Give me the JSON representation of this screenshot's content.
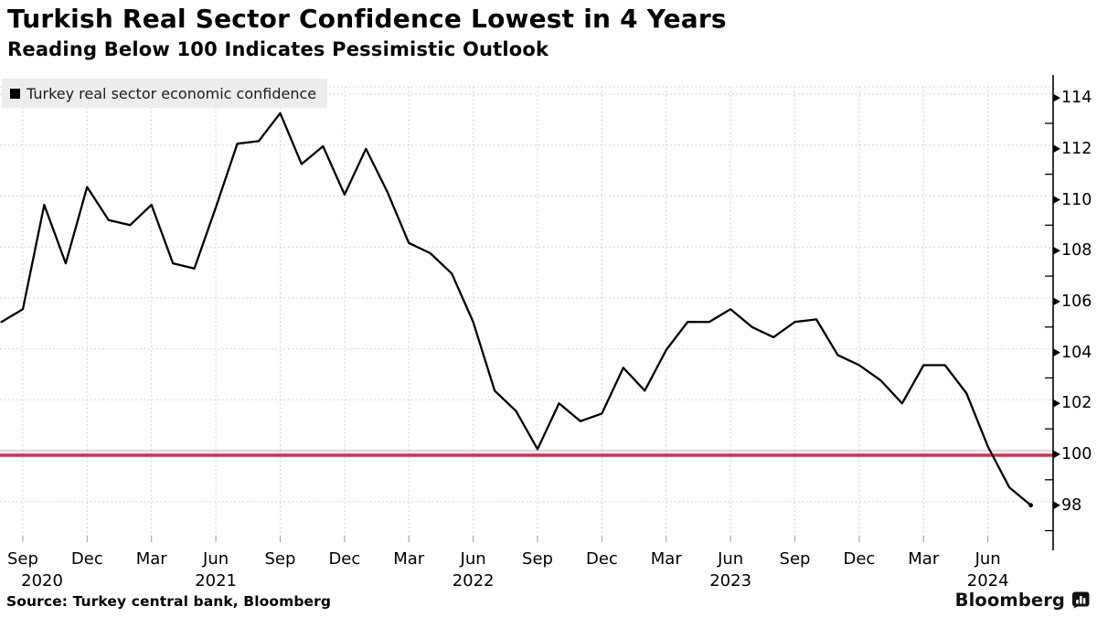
{
  "header": {
    "title": "Turkish Real Sector Confidence Lowest in 4 Years",
    "subtitle": "Reading Below 100 Indicates Pessimistic Outlook"
  },
  "legend": {
    "label": "Turkey real sector economic confidence"
  },
  "footer": {
    "source": "Source: Turkey central bank, Bloomberg",
    "brand": "Bloomberg"
  },
  "chart_data": {
    "type": "line",
    "title": "Turkish Real Sector Confidence Lowest in 4 Years",
    "subtitle": "Reading Below 100 Indicates Pessimistic Outlook",
    "legend_label": "Turkey real sector economic confidence",
    "x": [
      "2020-08",
      "2020-09",
      "2020-10",
      "2020-11",
      "2020-12",
      "2021-01",
      "2021-02",
      "2021-03",
      "2021-04",
      "2021-05",
      "2021-06",
      "2021-07",
      "2021-08",
      "2021-09",
      "2021-10",
      "2021-11",
      "2021-12",
      "2022-01",
      "2022-02",
      "2022-03",
      "2022-04",
      "2022-05",
      "2022-06",
      "2022-07",
      "2022-08",
      "2022-09",
      "2022-10",
      "2022-11",
      "2022-12",
      "2023-01",
      "2023-02",
      "2023-03",
      "2023-04",
      "2023-05",
      "2023-06",
      "2023-07",
      "2023-08",
      "2023-09",
      "2023-10",
      "2023-11",
      "2023-12",
      "2024-01",
      "2024-02",
      "2024-03",
      "2024-04",
      "2024-05",
      "2024-06",
      "2024-07",
      "2024-08"
    ],
    "series": [
      {
        "name": "Turkey real sector economic confidence",
        "color": "#000000",
        "values": [
          105.2,
          105.7,
          109.8,
          107.5,
          110.5,
          109.2,
          109.0,
          109.8,
          107.5,
          107.3,
          109.7,
          112.2,
          112.3,
          113.4,
          111.4,
          112.1,
          110.2,
          112.0,
          110.3,
          108.3,
          107.9,
          107.1,
          105.2,
          102.5,
          101.7,
          100.2,
          102.0,
          101.3,
          101.6,
          103.4,
          102.5,
          104.1,
          105.2,
          105.2,
          105.7,
          105.0,
          104.6,
          105.2,
          105.3,
          103.9,
          103.5,
          102.9,
          102.0,
          103.5,
          103.5,
          102.4,
          100.3,
          98.7,
          98.0
        ]
      }
    ],
    "y_axis": {
      "side": "right",
      "tick_labels": [
        114,
        112,
        110,
        108,
        106,
        104,
        102,
        100,
        98
      ],
      "minor_tick_step": 1,
      "ylim": [
        96.6,
        115.1
      ]
    },
    "x_axis": {
      "quarter_ticks": [
        {
          "i": 1,
          "label": "Sep"
        },
        {
          "i": 4,
          "label": "Dec"
        },
        {
          "i": 7,
          "label": "Mar"
        },
        {
          "i": 10,
          "label": "Jun"
        },
        {
          "i": 13,
          "label": "Sep"
        },
        {
          "i": 16,
          "label": "Dec"
        },
        {
          "i": 19,
          "label": "Mar"
        },
        {
          "i": 22,
          "label": "Jun"
        },
        {
          "i": 25,
          "label": "Sep"
        },
        {
          "i": 28,
          "label": "Dec"
        },
        {
          "i": 31,
          "label": "Mar"
        },
        {
          "i": 34,
          "label": "Jun"
        },
        {
          "i": 37,
          "label": "Sep"
        },
        {
          "i": 40,
          "label": "Dec"
        },
        {
          "i": 43,
          "label": "Mar"
        },
        {
          "i": 46,
          "label": "Jun"
        }
      ],
      "year_labels": [
        {
          "i": 1.9,
          "label": "2020"
        },
        {
          "i": 10,
          "label": "2021"
        },
        {
          "i": 22,
          "label": "2022"
        },
        {
          "i": 34,
          "label": "2023"
        },
        {
          "i": 46,
          "label": "2024"
        }
      ]
    },
    "reference_line": {
      "value": 100,
      "color": "#e0294f"
    },
    "grid": {
      "on": true,
      "color": "#c9c9c9",
      "style": "dotted",
      "legend_position": "top-left"
    }
  }
}
